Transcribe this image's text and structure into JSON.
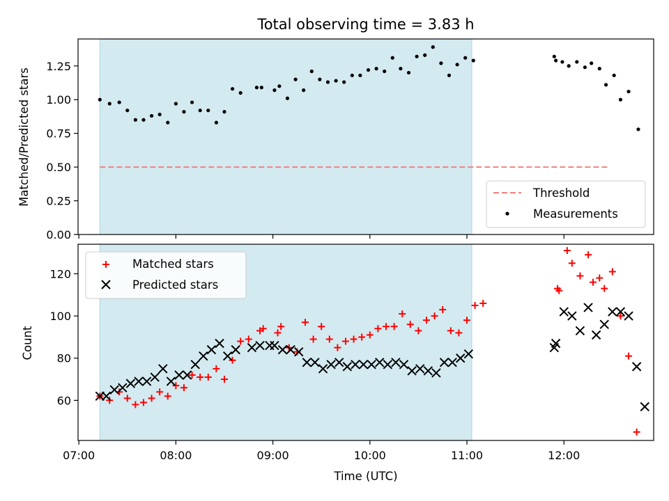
{
  "chart_data": [
    {
      "type": "scatter",
      "title": "Total observing time = 3.83 h",
      "xlabel": "",
      "ylabel": "Matched/Predicted stars",
      "ylim": [
        0,
        1.45
      ],
      "xlim": [
        "07:00",
        "12:45"
      ],
      "yticks": [
        "0.00",
        "0.25",
        "0.50",
        "0.75",
        "1.00",
        "1.25"
      ],
      "grid": false,
      "legend_placement": "lower-right",
      "shaded_interval": [
        "07:13",
        "11:03"
      ],
      "shade_color": "#d3eaf0",
      "threshold": {
        "name": "Threshold",
        "value": 0.5,
        "from": "07:13",
        "to": "12:28",
        "color": "#f08080",
        "style": "dashed"
      },
      "series": [
        {
          "name": "Measurements",
          "color": "#000000",
          "marker": "dot",
          "points": [
            [
              "07:13",
              1.0
            ],
            [
              "07:19",
              0.97
            ],
            [
              "07:25",
              0.98
            ],
            [
              "07:30",
              0.92
            ],
            [
              "07:35",
              0.85
            ],
            [
              "07:40",
              0.85
            ],
            [
              "07:45",
              0.88
            ],
            [
              "07:50",
              0.89
            ],
            [
              "07:55",
              0.83
            ],
            [
              "08:00",
              0.97
            ],
            [
              "08:05",
              0.91
            ],
            [
              "08:10",
              0.98
            ],
            [
              "08:15",
              0.92
            ],
            [
              "08:20",
              0.92
            ],
            [
              "08:25",
              0.83
            ],
            [
              "08:30",
              0.91
            ],
            [
              "08:35",
              1.08
            ],
            [
              "08:40",
              1.05
            ],
            [
              "08:50",
              1.09
            ],
            [
              "08:53",
              1.09
            ],
            [
              "09:01",
              1.07
            ],
            [
              "09:04",
              1.1
            ],
            [
              "09:09",
              1.01
            ],
            [
              "09:14",
              1.15
            ],
            [
              "09:19",
              1.07
            ],
            [
              "09:24",
              1.21
            ],
            [
              "09:29",
              1.15
            ],
            [
              "09:34",
              1.13
            ],
            [
              "09:39",
              1.14
            ],
            [
              "09:44",
              1.13
            ],
            [
              "09:49",
              1.18
            ],
            [
              "09:54",
              1.18
            ],
            [
              "09:59",
              1.22
            ],
            [
              "10:04",
              1.23
            ],
            [
              "10:09",
              1.21
            ],
            [
              "10:14",
              1.31
            ],
            [
              "10:19",
              1.23
            ],
            [
              "10:24",
              1.2
            ],
            [
              "10:29",
              1.32
            ],
            [
              "10:34",
              1.33
            ],
            [
              "10:39",
              1.39
            ],
            [
              "10:44",
              1.27
            ],
            [
              "10:49",
              1.18
            ],
            [
              "10:54",
              1.26
            ],
            [
              "10:59",
              1.31
            ],
            [
              "11:04",
              1.29
            ],
            [
              "11:54",
              1.32
            ],
            [
              "11:55",
              1.29
            ],
            [
              "11:59",
              1.28
            ],
            [
              "12:03",
              1.25
            ],
            [
              "12:08",
              1.28
            ],
            [
              "12:13",
              1.24
            ],
            [
              "12:17",
              1.27
            ],
            [
              "12:22",
              1.23
            ],
            [
              "12:26",
              1.11
            ],
            [
              "12:31",
              1.18
            ],
            [
              "12:35",
              1.0
            ],
            [
              "12:40",
              1.06
            ],
            [
              "12:46",
              0.78
            ]
          ]
        }
      ]
    },
    {
      "type": "scatter",
      "title": "",
      "xlabel": "Time (UTC)",
      "ylabel": "Count",
      "ylim": [
        41,
        134
      ],
      "xlim": [
        "07:00",
        "12:45"
      ],
      "yticks": [
        "60",
        "80",
        "100",
        "120"
      ],
      "xticks": [
        "07:00",
        "08:00",
        "09:00",
        "10:00",
        "11:00",
        "12:00"
      ],
      "grid": false,
      "legend_placement": "upper-left",
      "shaded_interval": [
        "07:13",
        "11:03"
      ],
      "series": [
        {
          "name": "Matched stars",
          "color": "#ff0000",
          "marker": "plus",
          "points": [
            [
              "07:13",
              62
            ],
            [
              "07:19",
              60
            ],
            [
              "07:25",
              64
            ],
            [
              "07:30",
              61
            ],
            [
              "07:35",
              58
            ],
            [
              "07:40",
              59
            ],
            [
              "07:45",
              61
            ],
            [
              "07:50",
              64
            ],
            [
              "07:55",
              62
            ],
            [
              "08:00",
              67
            ],
            [
              "08:05",
              66
            ],
            [
              "08:10",
              72
            ],
            [
              "08:15",
              71
            ],
            [
              "08:20",
              71
            ],
            [
              "08:25",
              75
            ],
            [
              "08:30",
              70
            ],
            [
              "08:35",
              79
            ],
            [
              "08:40",
              88
            ],
            [
              "08:45",
              89
            ],
            [
              "08:52",
              93
            ],
            [
              "08:54",
              94
            ],
            [
              "09:03",
              92
            ],
            [
              "09:05",
              95
            ],
            [
              "09:10",
              85
            ],
            [
              "09:15",
              83
            ],
            [
              "09:20",
              97
            ],
            [
              "09:25",
              89
            ],
            [
              "09:30",
              95
            ],
            [
              "09:35",
              89
            ],
            [
              "09:40",
              85
            ],
            [
              "09:45",
              88
            ],
            [
              "09:50",
              89
            ],
            [
              "09:55",
              90
            ],
            [
              "10:00",
              91
            ],
            [
              "10:05",
              94
            ],
            [
              "10:10",
              95
            ],
            [
              "10:15",
              95
            ],
            [
              "10:20",
              101
            ],
            [
              "10:25",
              96
            ],
            [
              "10:30",
              93
            ],
            [
              "10:35",
              98
            ],
            [
              "10:40",
              100
            ],
            [
              "10:45",
              103
            ],
            [
              "10:50",
              93
            ],
            [
              "10:55",
              92
            ],
            [
              "11:00",
              98
            ],
            [
              "11:05",
              105
            ],
            [
              "11:10",
              106
            ],
            [
              "11:56",
              113
            ],
            [
              "11:57",
              112
            ],
            [
              "12:02",
              131
            ],
            [
              "12:05",
              125
            ],
            [
              "12:10",
              119
            ],
            [
              "12:15",
              129
            ],
            [
              "12:18",
              116
            ],
            [
              "12:22",
              118
            ],
            [
              "12:25",
              113
            ],
            [
              "12:30",
              121
            ],
            [
              "12:35",
              100
            ],
            [
              "12:40",
              81
            ],
            [
              "12:45",
              45
            ]
          ]
        },
        {
          "name": "Predicted stars",
          "color": "#000000",
          "marker": "x",
          "points": [
            [
              "07:13",
              62
            ],
            [
              "07:17",
              62
            ],
            [
              "07:22",
              65
            ],
            [
              "07:27",
              66
            ],
            [
              "07:32",
              68
            ],
            [
              "07:37",
              69
            ],
            [
              "07:42",
              69
            ],
            [
              "07:47",
              71
            ],
            [
              "07:52",
              75
            ],
            [
              "07:57",
              69
            ],
            [
              "08:02",
              72
            ],
            [
              "08:07",
              72
            ],
            [
              "08:12",
              77
            ],
            [
              "08:17",
              81
            ],
            [
              "08:22",
              84
            ],
            [
              "08:27",
              87
            ],
            [
              "08:32",
              81
            ],
            [
              "08:37",
              84
            ],
            [
              "08:47",
              85
            ],
            [
              "08:52",
              86
            ],
            [
              "08:58",
              86
            ],
            [
              "09:01",
              86
            ],
            [
              "09:06",
              84
            ],
            [
              "09:11",
              84
            ],
            [
              "09:16",
              83
            ],
            [
              "09:21",
              78
            ],
            [
              "09:26",
              78
            ],
            [
              "09:31",
              75
            ],
            [
              "09:36",
              77
            ],
            [
              "09:41",
              78
            ],
            [
              "09:46",
              76
            ],
            [
              "09:51",
              77
            ],
            [
              "09:56",
              77
            ],
            [
              "10:01",
              77
            ],
            [
              "10:06",
              78
            ],
            [
              "10:11",
              77
            ],
            [
              "10:16",
              78
            ],
            [
              "10:21",
              77
            ],
            [
              "10:26",
              74
            ],
            [
              "10:31",
              75
            ],
            [
              "10:36",
              74
            ],
            [
              "10:41",
              73
            ],
            [
              "10:46",
              78
            ],
            [
              "10:51",
              78
            ],
            [
              "10:56",
              80
            ],
            [
              "11:01",
              82
            ],
            [
              "11:54",
              85
            ],
            [
              "11:55",
              87
            ],
            [
              "12:00",
              102
            ],
            [
              "12:05",
              100
            ],
            [
              "12:10",
              93
            ],
            [
              "12:15",
              104
            ],
            [
              "12:20",
              91
            ],
            [
              "12:25",
              96
            ],
            [
              "12:30",
              102
            ],
            [
              "12:35",
              102
            ],
            [
              "12:40",
              100
            ],
            [
              "12:45",
              76
            ],
            [
              "12:50",
              57
            ]
          ]
        }
      ]
    }
  ]
}
